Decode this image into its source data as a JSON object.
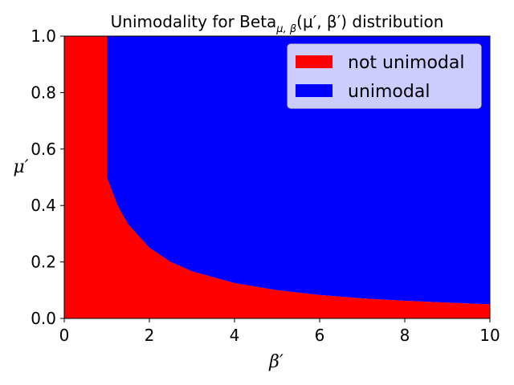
{
  "chart_data": {
    "type": "area",
    "title": {
      "prefix": "Unimodality for Beta",
      "subscript": "μ, β",
      "suffix": "(μ′, β′) distribution"
    },
    "xlabel": "β′",
    "ylabel": "μ′",
    "xlim": [
      0,
      10
    ],
    "ylim": [
      0,
      1
    ],
    "xticks": [
      0,
      2,
      4,
      6,
      8,
      10
    ],
    "yticks": [
      0.0,
      0.2,
      0.4,
      0.6,
      0.8,
      1.0
    ],
    "xtick_labels": [
      "0",
      "2",
      "4",
      "6",
      "8",
      "10"
    ],
    "ytick_labels": [
      "0.0",
      "0.2",
      "0.4",
      "0.6",
      "0.8",
      "1.0"
    ],
    "grid": false,
    "legend_position": "top-right",
    "series": [
      {
        "name": "not unimodal",
        "color": "#ff0000"
      },
      {
        "name": "unimodal",
        "color": "#0000ff"
      }
    ],
    "boundary": {
      "x": [
        1.0,
        1.25,
        1.5,
        2.0,
        2.5,
        3.0,
        4.0,
        5.0,
        6.0,
        7.0,
        8.0,
        9.0,
        10.0
      ],
      "y": [
        0.5,
        0.4,
        0.333,
        0.25,
        0.2,
        0.167,
        0.125,
        0.1,
        0.083,
        0.071,
        0.0625,
        0.056,
        0.05
      ],
      "vertical_segment_at_x": 1.0
    }
  }
}
